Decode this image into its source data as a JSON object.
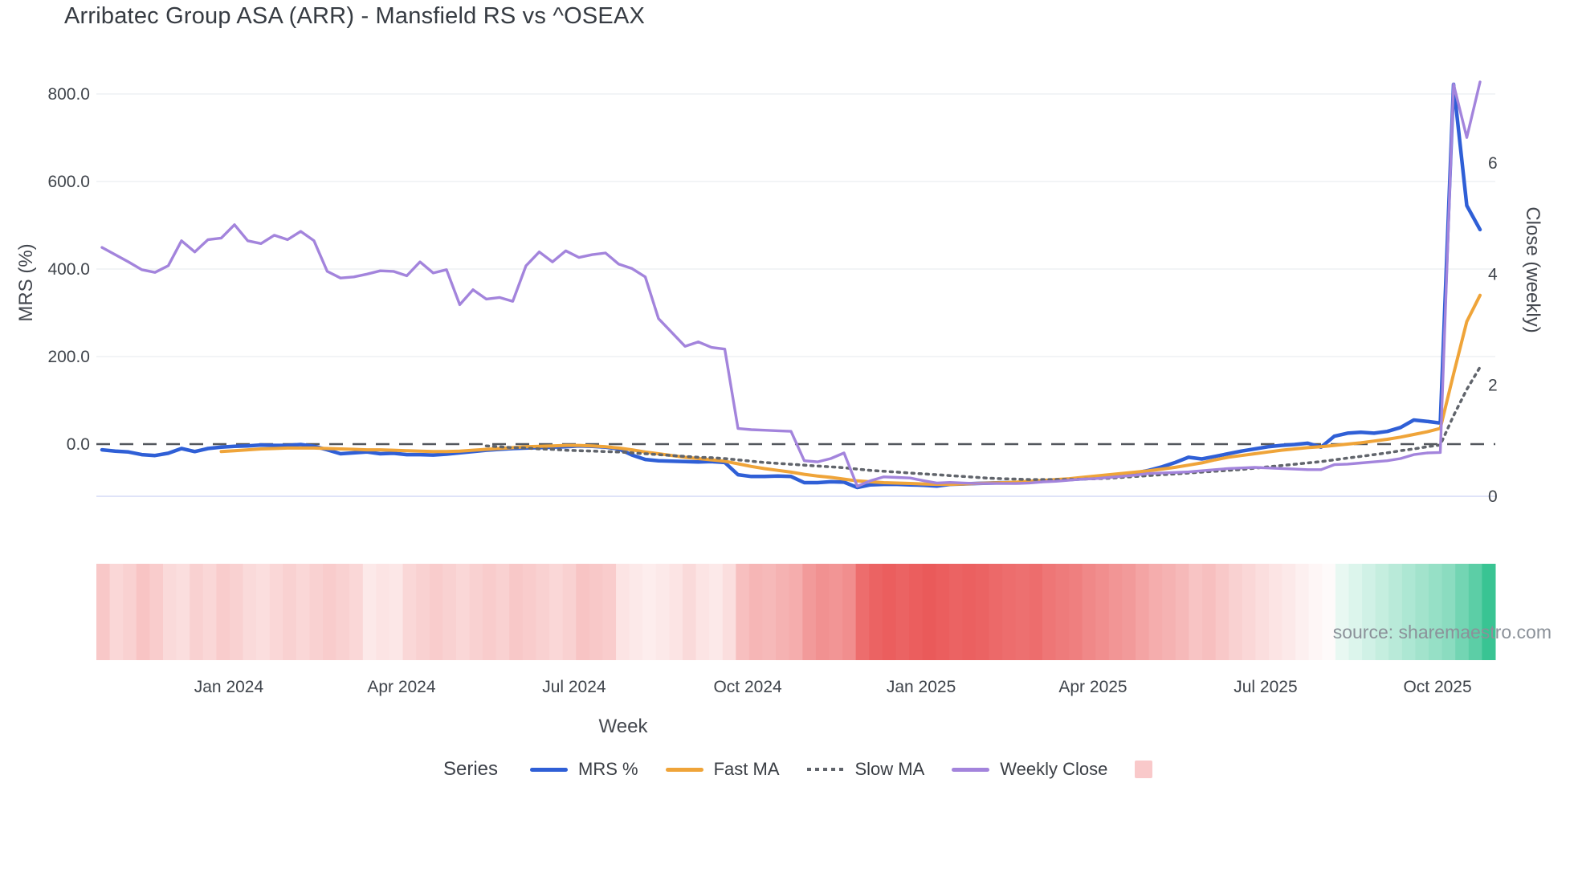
{
  "title": "Arribatec Group ASA (ARR) - Mansfield RS vs ^OSEAX",
  "source": "source: sharemaestro.com",
  "axes": {
    "left": {
      "title": "MRS (%)",
      "tick_labels": [
        "800.0",
        "600.0",
        "400.0",
        "200.0",
        "0.0"
      ],
      "tick_values": [
        800,
        600,
        400,
        200,
        0
      ]
    },
    "right": {
      "title": "Close (weekly)",
      "tick_labels": [
        "6",
        "4",
        "2",
        "0"
      ],
      "tick_values": [
        6,
        4,
        2,
        0
      ]
    },
    "x": {
      "title": "Week"
    }
  },
  "legend": {
    "title": "Series",
    "items": [
      {
        "label": "MRS %",
        "color": "#2f5fd6",
        "style": "solid"
      },
      {
        "label": "Fast MA",
        "color": "#efa439",
        "style": "solid"
      },
      {
        "label": "Slow MA",
        "color": "#60646b",
        "style": "dotted"
      },
      {
        "label": "Weekly Close",
        "color": "#a384dc",
        "style": "solid"
      }
    ],
    "heat_swatch_color": "#f9c9ca"
  },
  "colors": {
    "zero_line": "#53575d",
    "grid": "#eef0f4",
    "right_zero_grid": "#dfe3f8",
    "tick_text": "#3f444b",
    "heat_red": "#e84848",
    "heat_green": "#16b980"
  },
  "chart_data": {
    "type": "line",
    "title": "Arribatec Group ASA (ARR) - Mansfield RS vs ^OSEAX",
    "xlabel": "Week",
    "x_unit": "week",
    "n_points": 105,
    "x_tick_labels": [
      "Jan 2024",
      "Apr 2024",
      "Jul 2024",
      "Oct 2024",
      "Jan 2025",
      "Apr 2025",
      "Jul 2025",
      "Oct 2025"
    ],
    "x_tick_positions": [
      0.0947,
      0.2181,
      0.3415,
      0.4656,
      0.5896,
      0.7124,
      0.8358,
      0.9587
    ],
    "y_left": {
      "label": "MRS (%)",
      "ticks": [
        0,
        200,
        400,
        600,
        800
      ],
      "plot_range": [
        -150,
        860
      ]
    },
    "y_right": {
      "label": "Close (weekly)",
      "ticks": [
        0,
        2,
        4,
        6
      ],
      "plot_range": [
        -0.2,
        7.7
      ]
    },
    "grid": true,
    "legend_position": "bottom",
    "series": [
      {
        "name": "MRS %",
        "axis": "left",
        "style": "solid",
        "color": "#2f5fd6",
        "values": [
          -13,
          -16,
          -18,
          -24,
          -26,
          -21,
          -10,
          -17,
          -10,
          -7,
          -5,
          -4,
          -2,
          -3,
          -3,
          -1,
          -5,
          -13,
          -22,
          -20,
          -18,
          -22,
          -21,
          -24,
          -24,
          -25,
          -23,
          -20,
          -17,
          -14,
          -12,
          -10,
          -9,
          -8,
          -7,
          -6,
          -4,
          -5,
          -7,
          -11,
          -25,
          -35,
          -38,
          -39,
          -40,
          -41,
          -40,
          -42,
          -70,
          -74,
          -74,
          -73,
          -74,
          -88,
          -88,
          -86,
          -87,
          -99,
          -93,
          -92,
          -92,
          -93,
          -94,
          -96,
          -92,
          -91,
          -90,
          -89,
          -88,
          -88,
          -87,
          -85,
          -83,
          -81,
          -79,
          -77,
          -75,
          -71,
          -66,
          -60,
          -52,
          -42,
          -30,
          -34,
          -28,
          -22,
          -16,
          -11,
          -6,
          -3,
          -1,
          2,
          -7,
          18,
          25,
          27,
          25,
          29,
          38,
          55,
          52,
          48,
          822,
          545,
          490
        ]
      },
      {
        "name": "Fast MA",
        "axis": "left",
        "style": "solid",
        "color": "#efa439",
        "values": [
          null,
          null,
          null,
          null,
          null,
          null,
          null,
          null,
          null,
          -17,
          -15,
          -13,
          -11,
          -10,
          -9,
          -9,
          -9,
          -10,
          -11,
          -12,
          -13,
          -13,
          -14,
          -15,
          -16,
          -17,
          -17,
          -16,
          -14,
          -12,
          -10,
          -8,
          -6,
          -5,
          -4,
          -3,
          -3,
          -4,
          -6,
          -9,
          -13,
          -18,
          -22,
          -26,
          -30,
          -33,
          -36,
          -39,
          -45,
          -51,
          -56,
          -60,
          -64,
          -69,
          -73,
          -76,
          -80,
          -84,
          -86,
          -88,
          -89,
          -90,
          -91,
          -92,
          -92,
          -91,
          -90,
          -89,
          -88,
          -87,
          -85,
          -83,
          -81,
          -79,
          -76,
          -73,
          -70,
          -67,
          -64,
          -61,
          -57,
          -53,
          -48,
          -43,
          -36,
          -30,
          -26,
          -22,
          -18,
          -14,
          -11,
          -8,
          -6,
          -3,
          0,
          3,
          7,
          11,
          16,
          22,
          28,
          36,
          160,
          280,
          340
        ]
      },
      {
        "name": "Slow MA",
        "axis": "left",
        "style": "dotted",
        "color": "#60646b",
        "values": [
          null,
          null,
          null,
          null,
          null,
          null,
          null,
          null,
          null,
          null,
          null,
          null,
          null,
          null,
          null,
          null,
          null,
          null,
          null,
          null,
          null,
          null,
          null,
          null,
          null,
          null,
          null,
          null,
          null,
          -4,
          -6,
          -8,
          -9,
          -11,
          -12,
          -14,
          -15,
          -16,
          -17,
          -18,
          -20,
          -22,
          -24,
          -26,
          -28,
          -30,
          -31,
          -33,
          -36,
          -39,
          -42,
          -44,
          -46,
          -48,
          -50,
          -52,
          -54,
          -57,
          -60,
          -62,
          -64,
          -66,
          -68,
          -70,
          -72,
          -74,
          -76,
          -78,
          -79,
          -80,
          -81,
          -81,
          -81,
          -81,
          -80,
          -79,
          -78,
          -76,
          -74,
          -72,
          -70,
          -68,
          -66,
          -64,
          -62,
          -60,
          -58,
          -55,
          -52,
          -49,
          -46,
          -43,
          -40,
          -36,
          -32,
          -28,
          -24,
          -20,
          -15,
          -11,
          -6,
          -2,
          65,
          125,
          176
        ]
      },
      {
        "name": "Weekly Close",
        "axis": "right",
        "style": "solid",
        "color": "#a384dc",
        "values": [
          4.48,
          4.35,
          4.22,
          4.08,
          4.03,
          4.15,
          4.6,
          4.4,
          4.62,
          4.65,
          4.89,
          4.6,
          4.55,
          4.7,
          4.62,
          4.77,
          4.6,
          4.05,
          3.93,
          3.95,
          4.0,
          4.06,
          4.05,
          3.97,
          4.22,
          4.02,
          4.08,
          3.45,
          3.72,
          3.55,
          3.58,
          3.51,
          4.15,
          4.4,
          4.22,
          4.42,
          4.3,
          4.35,
          4.38,
          4.18,
          4.1,
          3.95,
          3.2,
          2.95,
          2.7,
          2.78,
          2.68,
          2.65,
          1.22,
          1.2,
          1.19,
          1.18,
          1.17,
          0.64,
          0.62,
          0.68,
          0.78,
          0.18,
          0.28,
          0.35,
          0.34,
          0.33,
          0.28,
          0.24,
          0.25,
          0.24,
          0.23,
          0.23,
          0.23,
          0.23,
          0.24,
          0.26,
          0.27,
          0.29,
          0.31,
          0.32,
          0.34,
          0.36,
          0.38,
          0.41,
          0.42,
          0.43,
          0.44,
          0.46,
          0.48,
          0.5,
          0.51,
          0.52,
          0.51,
          0.5,
          0.49,
          0.48,
          0.48,
          0.57,
          0.58,
          0.6,
          0.62,
          0.64,
          0.68,
          0.75,
          0.78,
          0.79,
          7.42,
          6.46,
          7.46
        ]
      }
    ],
    "heatmap": {
      "name": "weekly heat band",
      "scale": "red(-1) to white(0) to green(+1)",
      "values": [
        -0.3,
        -0.22,
        -0.25,
        -0.32,
        -0.28,
        -0.2,
        -0.18,
        -0.25,
        -0.22,
        -0.28,
        -0.25,
        -0.2,
        -0.18,
        -0.22,
        -0.25,
        -0.22,
        -0.25,
        -0.28,
        -0.25,
        -0.22,
        -0.12,
        -0.15,
        -0.13,
        -0.22,
        -0.25,
        -0.28,
        -0.25,
        -0.22,
        -0.25,
        -0.28,
        -0.25,
        -0.3,
        -0.28,
        -0.25,
        -0.22,
        -0.25,
        -0.32,
        -0.3,
        -0.28,
        -0.15,
        -0.12,
        -0.1,
        -0.12,
        -0.15,
        -0.2,
        -0.15,
        -0.12,
        -0.18,
        -0.35,
        -0.4,
        -0.38,
        -0.42,
        -0.45,
        -0.55,
        -0.6,
        -0.58,
        -0.62,
        -0.8,
        -0.85,
        -0.88,
        -0.85,
        -0.88,
        -0.9,
        -0.88,
        -0.85,
        -0.87,
        -0.85,
        -0.82,
        -0.8,
        -0.78,
        -0.8,
        -0.75,
        -0.72,
        -0.7,
        -0.65,
        -0.62,
        -0.58,
        -0.55,
        -0.5,
        -0.45,
        -0.42,
        -0.38,
        -0.32,
        -0.35,
        -0.3,
        -0.25,
        -0.22,
        -0.18,
        -0.15,
        -0.12,
        -0.08,
        -0.05,
        -0.03,
        0.1,
        0.15,
        0.2,
        0.25,
        0.3,
        0.35,
        0.4,
        0.45,
        0.5,
        0.6,
        0.7,
        0.85
      ]
    }
  }
}
